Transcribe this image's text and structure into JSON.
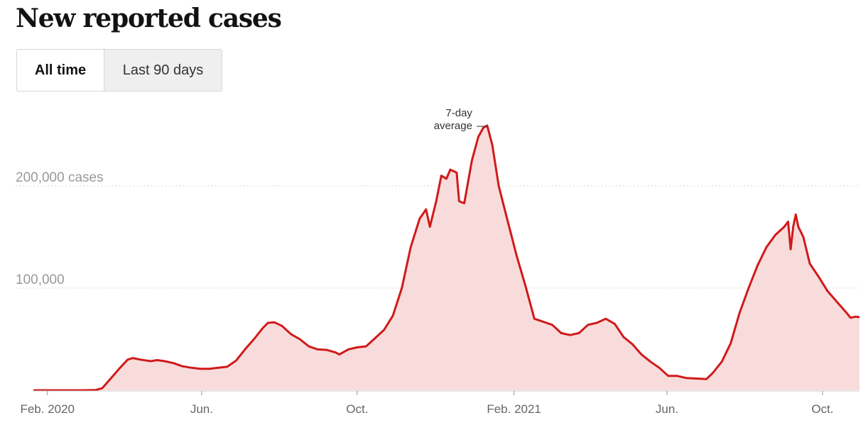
{
  "title": "New reported cases",
  "toggle": {
    "active_label": "All time",
    "inactive_label": "Last 90 days"
  },
  "chart_data": {
    "type": "area",
    "title": "New reported cases",
    "series": [
      {
        "name": "7-day average",
        "color": "#d01a1a",
        "fill": "#f8dcdc"
      }
    ],
    "annotation": {
      "text_line1": "7-day",
      "text_line2": "average",
      "x": "2021-01-11",
      "y": 259000
    },
    "y_tick_labels": [
      {
        "value": 200000,
        "label": "200,000 cases"
      },
      {
        "value": 100000,
        "label": "100,000"
      }
    ],
    "x_tick_labels": [
      {
        "date": "2020-02-01",
        "label": "Feb. 2020"
      },
      {
        "date": "2020-06-01",
        "label": "Jun."
      },
      {
        "date": "2020-10-01",
        "label": "Oct."
      },
      {
        "date": "2021-02-01",
        "label": "Feb. 2021"
      },
      {
        "date": "2021-06-01",
        "label": "Jun."
      },
      {
        "date": "2021-10-01",
        "label": "Oct."
      }
    ],
    "x_range": [
      "2020-01-21",
      "2021-10-30"
    ],
    "ylim": [
      0,
      265000
    ],
    "grid": "horizontal dotted",
    "points": [
      [
        "2020-01-21",
        0
      ],
      [
        "2020-03-01",
        0
      ],
      [
        "2020-03-10",
        300
      ],
      [
        "2020-03-15",
        2000
      ],
      [
        "2020-03-22",
        12000
      ],
      [
        "2020-03-29",
        22000
      ],
      [
        "2020-04-04",
        30000
      ],
      [
        "2020-04-08",
        31500
      ],
      [
        "2020-04-14",
        30000
      ],
      [
        "2020-04-22",
        28500
      ],
      [
        "2020-04-27",
        29500
      ],
      [
        "2020-05-03",
        28500
      ],
      [
        "2020-05-10",
        26500
      ],
      [
        "2020-05-17",
        23500
      ],
      [
        "2020-05-24",
        22000
      ],
      [
        "2020-05-31",
        21000
      ],
      [
        "2020-06-07",
        21000
      ],
      [
        "2020-06-14",
        22000
      ],
      [
        "2020-06-21",
        23000
      ],
      [
        "2020-06-28",
        29000
      ],
      [
        "2020-07-05",
        40000
      ],
      [
        "2020-07-12",
        50000
      ],
      [
        "2020-07-19",
        61000
      ],
      [
        "2020-07-23",
        66000
      ],
      [
        "2020-07-28",
        66500
      ],
      [
        "2020-08-03",
        63000
      ],
      [
        "2020-08-10",
        55000
      ],
      [
        "2020-08-17",
        50000
      ],
      [
        "2020-08-24",
        43000
      ],
      [
        "2020-08-31",
        40000
      ],
      [
        "2020-09-07",
        39500
      ],
      [
        "2020-09-14",
        37000
      ],
      [
        "2020-09-17",
        35000
      ],
      [
        "2020-09-24",
        40000
      ],
      [
        "2020-10-01",
        42000
      ],
      [
        "2020-10-08",
        43000
      ],
      [
        "2020-10-15",
        51000
      ],
      [
        "2020-10-22",
        59000
      ],
      [
        "2020-10-29",
        73000
      ],
      [
        "2020-11-05",
        100000
      ],
      [
        "2020-11-12",
        140000
      ],
      [
        "2020-11-19",
        168000
      ],
      [
        "2020-11-24",
        177000
      ],
      [
        "2020-11-27",
        160000
      ],
      [
        "2020-12-02",
        185000
      ],
      [
        "2020-12-06",
        210000
      ],
      [
        "2020-12-10",
        207000
      ],
      [
        "2020-12-13",
        216000
      ],
      [
        "2020-12-18",
        213000
      ],
      [
        "2020-12-20",
        185000
      ],
      [
        "2020-12-24",
        183000
      ],
      [
        "2020-12-30",
        225000
      ],
      [
        "2021-01-04",
        248000
      ],
      [
        "2021-01-08",
        257000
      ],
      [
        "2021-01-11",
        259000
      ],
      [
        "2021-01-15",
        240000
      ],
      [
        "2021-01-20",
        200000
      ],
      [
        "2021-01-27",
        166000
      ],
      [
        "2021-02-03",
        132000
      ],
      [
        "2021-02-10",
        102000
      ],
      [
        "2021-02-17",
        70000
      ],
      [
        "2021-02-24",
        67000
      ],
      [
        "2021-03-03",
        64000
      ],
      [
        "2021-03-10",
        56000
      ],
      [
        "2021-03-17",
        54000
      ],
      [
        "2021-03-24",
        56000
      ],
      [
        "2021-03-31",
        64000
      ],
      [
        "2021-04-07",
        66000
      ],
      [
        "2021-04-14",
        70000
      ],
      [
        "2021-04-21",
        65000
      ],
      [
        "2021-04-28",
        52000
      ],
      [
        "2021-05-05",
        45000
      ],
      [
        "2021-05-12",
        35000
      ],
      [
        "2021-05-19",
        28000
      ],
      [
        "2021-05-26",
        22000
      ],
      [
        "2021-06-02",
        14000
      ],
      [
        "2021-06-09",
        14000
      ],
      [
        "2021-06-16",
        12000
      ],
      [
        "2021-06-23",
        11500
      ],
      [
        "2021-07-02",
        11000
      ],
      [
        "2021-07-07",
        17000
      ],
      [
        "2021-07-14",
        28000
      ],
      [
        "2021-07-21",
        46000
      ],
      [
        "2021-07-28",
        76000
      ],
      [
        "2021-08-04",
        100000
      ],
      [
        "2021-08-11",
        122000
      ],
      [
        "2021-08-18",
        140000
      ],
      [
        "2021-08-25",
        152000
      ],
      [
        "2021-09-01",
        160000
      ],
      [
        "2021-09-04",
        165000
      ],
      [
        "2021-09-06",
        138000
      ],
      [
        "2021-09-08",
        160000
      ],
      [
        "2021-09-10",
        172000
      ],
      [
        "2021-09-12",
        160000
      ],
      [
        "2021-09-16",
        150000
      ],
      [
        "2021-09-21",
        124000
      ],
      [
        "2021-09-28",
        111000
      ],
      [
        "2021-10-05",
        97000
      ],
      [
        "2021-10-12",
        87000
      ],
      [
        "2021-10-19",
        77000
      ],
      [
        "2021-10-23",
        71000
      ],
      [
        "2021-10-27",
        72000
      ],
      [
        "2021-10-30",
        71500
      ]
    ]
  }
}
